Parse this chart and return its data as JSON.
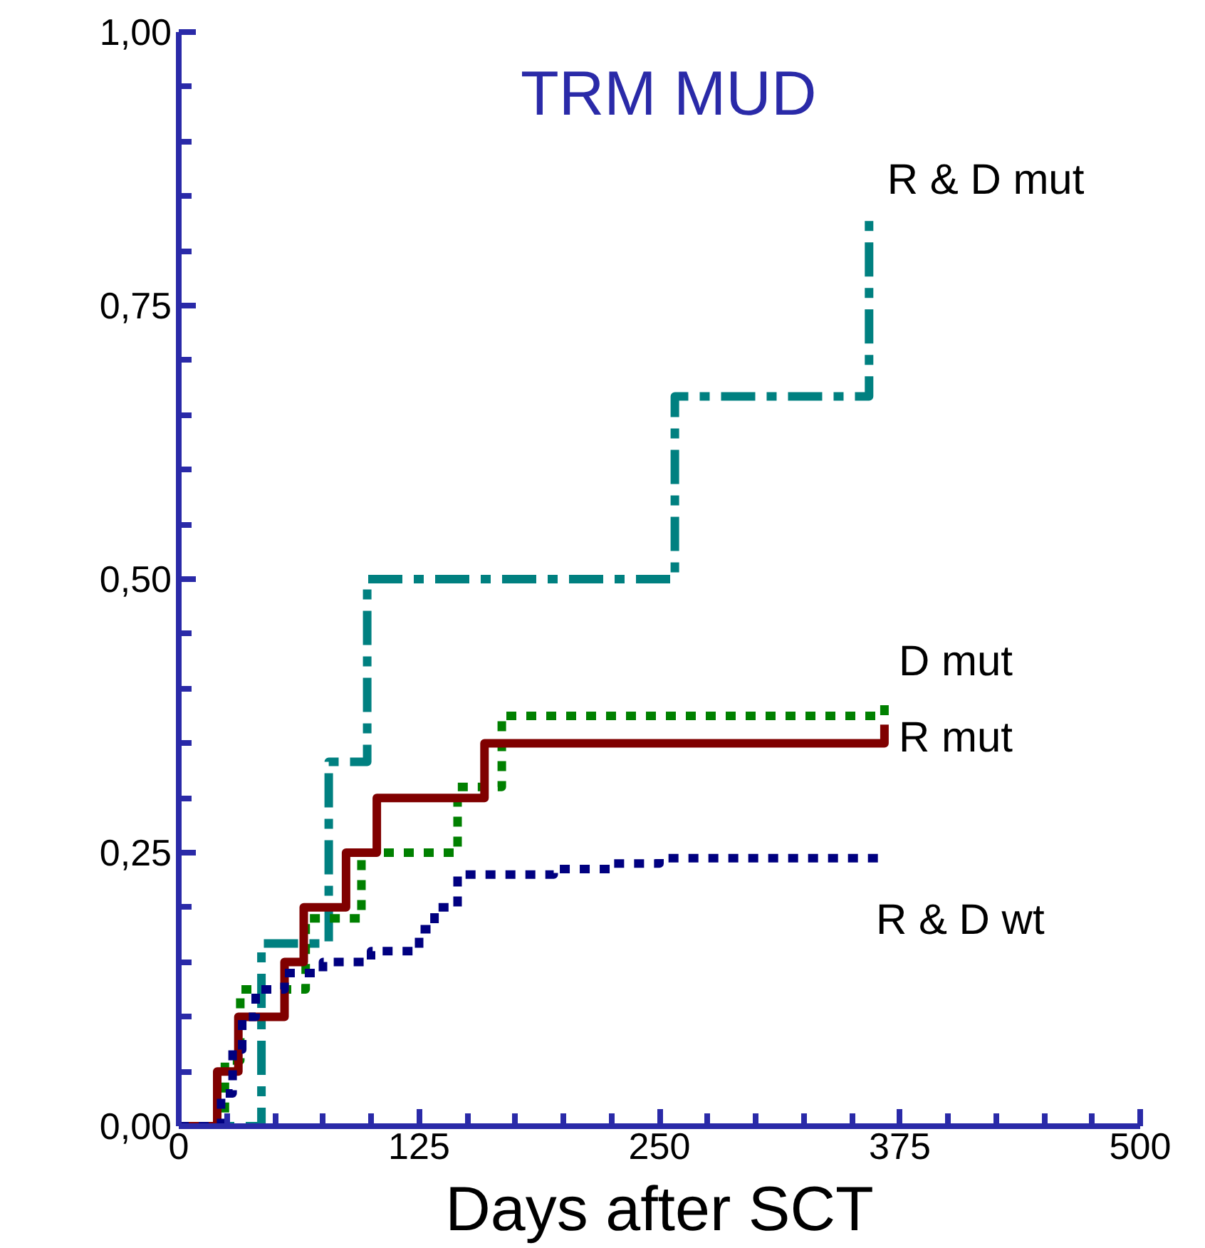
{
  "chart_data": {
    "type": "step",
    "title": "TRM    MUD",
    "xlabel": "Days after SCT",
    "xlim": [
      0,
      500
    ],
    "ylim": [
      0,
      1
    ],
    "xticks": [
      0,
      125,
      250,
      375,
      500
    ],
    "yticks": [
      {
        "value": 0,
        "label": "0,00"
      },
      {
        "value": 0.25,
        "label": "0,25"
      },
      {
        "value": 0.5,
        "label": "0,50"
      },
      {
        "value": 0.75,
        "label": "0,75"
      },
      {
        "value": 1,
        "label": "1,00"
      }
    ],
    "grid": false,
    "legend": false,
    "marker": "none",
    "series": [
      {
        "name": "R & D mut",
        "color": "#008080",
        "line_style": "dashdot",
        "x": [
          0,
          43,
          78,
          98,
          258,
          359,
          361
        ],
        "values": [
          0,
          0.167,
          0.333,
          0.5,
          0.667,
          0.833,
          0.833
        ]
      },
      {
        "name": "D mut",
        "color": "#008000",
        "line_style": "dotted",
        "x": [
          0,
          24,
          32,
          66,
          95,
          145,
          168,
          367
        ],
        "values": [
          0,
          0.06,
          0.125,
          0.19,
          0.25,
          0.31,
          0.375,
          0.385
        ]
      },
      {
        "name": "R mut",
        "color": "#800000",
        "line_style": "solid",
        "x": [
          0,
          20,
          31,
          55,
          65,
          87,
          103,
          159,
          367
        ],
        "values": [
          0,
          0.05,
          0.1,
          0.15,
          0.2,
          0.25,
          0.3,
          0.35,
          0.367
        ]
      },
      {
        "name": "R & D wt",
        "color": "#000080",
        "line_style": "dotted",
        "x": [
          0,
          22,
          28,
          33,
          40,
          55,
          75,
          100,
          125,
          133,
          145,
          195,
          226,
          250,
          367
        ],
        "values": [
          0,
          0.03,
          0.07,
          0.1,
          0.125,
          0.14,
          0.15,
          0.16,
          0.18,
          0.2,
          0.23,
          0.235,
          0.24,
          0.245,
          0.245
        ]
      }
    ]
  }
}
